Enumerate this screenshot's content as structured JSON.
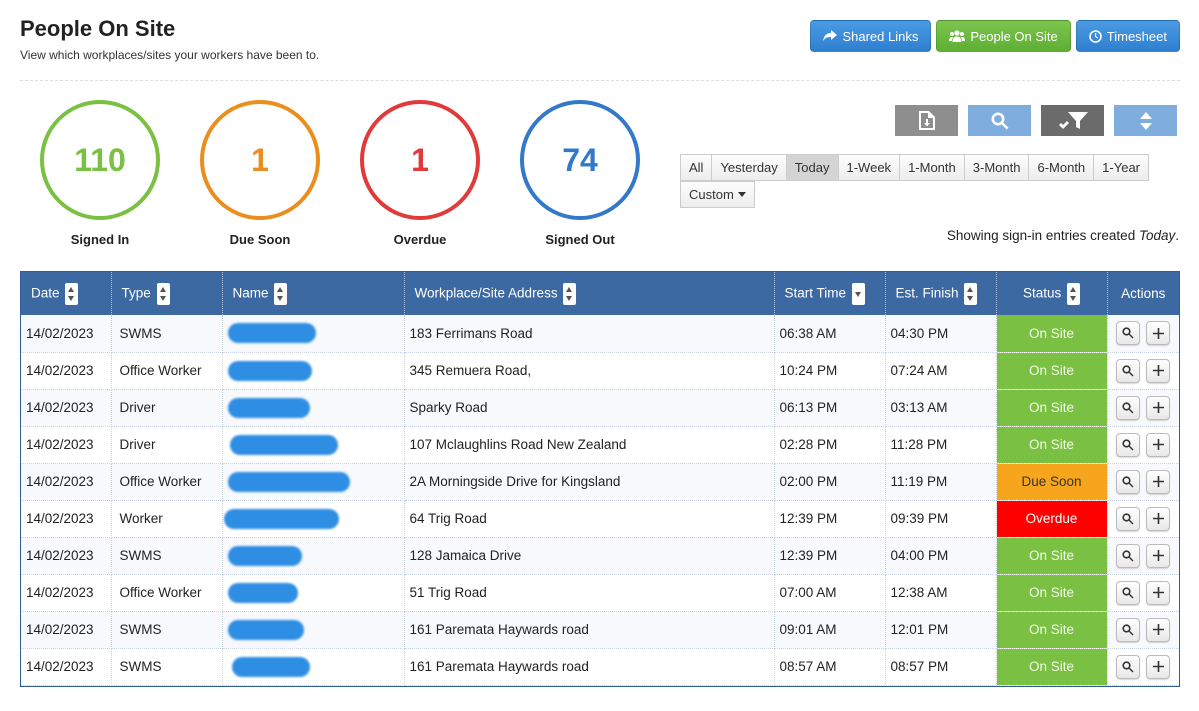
{
  "header": {
    "title": "People On Site",
    "subtitle": "View which workplaces/sites your workers have been to."
  },
  "top_buttons": {
    "shared_links": "Shared Links",
    "people_on_site": "People On Site",
    "timesheet": "Timesheet"
  },
  "stats": [
    {
      "value": "110",
      "label": "Signed In",
      "color": "#7ac143"
    },
    {
      "value": "1",
      "label": "Due Soon",
      "color": "#ea8f1f"
    },
    {
      "value": "1",
      "label": "Overdue",
      "color": "#e03a3a"
    },
    {
      "value": "74",
      "label": "Signed Out",
      "color": "#3478c9"
    }
  ],
  "tools": {
    "export_icon": "file-download-icon",
    "search_icon": "search-icon",
    "filter_icon": "filter-icon",
    "sort_icon": "sort-icon"
  },
  "ranges": [
    "All",
    "Yesterday",
    "Today",
    "1-Week",
    "1-Month",
    "3-Month",
    "6-Month",
    "1-Year"
  ],
  "active_range": "Today",
  "custom_label": "Custom",
  "showing": {
    "prefix": "Showing sign-in entries created ",
    "range": "Today",
    "suffix": "."
  },
  "table": {
    "columns": {
      "date": "Date",
      "type": "Type",
      "name": "Name",
      "address": "Workplace/Site Address",
      "start": "Start Time",
      "finish": "Est. Finish",
      "status": "Status",
      "actions": "Actions"
    },
    "rows": [
      {
        "date": "14/02/2023",
        "type": "SWMS",
        "address": "183 Ferrimans Road",
        "start": "06:38 AM",
        "finish": "04:30 PM",
        "status": "On Site"
      },
      {
        "date": "14/02/2023",
        "type": "Office Worker",
        "address": "345 Remuera Road,",
        "start": "10:24 PM",
        "finish": "07:24 AM",
        "status": "On Site"
      },
      {
        "date": "14/02/2023",
        "type": "Driver",
        "address": "Sparky Road",
        "start": "06:13 PM",
        "finish": "03:13 AM",
        "status": "On Site"
      },
      {
        "date": "14/02/2023",
        "type": "Driver",
        "address": "107 Mclaughlins Road New Zealand",
        "start": "02:28 PM",
        "finish": "11:28 PM",
        "status": "On Site"
      },
      {
        "date": "14/02/2023",
        "type": "Office Worker",
        "address": "2A Morningside Drive for Kingsland",
        "start": "02:00 PM",
        "finish": "11:19 PM",
        "status": "Due Soon"
      },
      {
        "date": "14/02/2023",
        "type": "Worker",
        "address": "64 Trig Road",
        "start": "12:39 PM",
        "finish": "09:39 PM",
        "status": "Overdue"
      },
      {
        "date": "14/02/2023",
        "type": "SWMS",
        "address": "128 Jamaica Drive",
        "start": "12:39 PM",
        "finish": "04:00 PM",
        "status": "On Site"
      },
      {
        "date": "14/02/2023",
        "type": "Office Worker",
        "address": "51 Trig Road",
        "start": "07:00 AM",
        "finish": "12:38 AM",
        "status": "On Site"
      },
      {
        "date": "14/02/2023",
        "type": "SWMS",
        "address": "161 Paremata Haywards road",
        "start": "09:01 AM",
        "finish": "12:01 PM",
        "status": "On Site"
      },
      {
        "date": "14/02/2023",
        "type": "SWMS",
        "address": "161 Paremata Haywards road",
        "start": "08:57 AM",
        "finish": "08:57 PM",
        "status": "On Site"
      }
    ]
  }
}
